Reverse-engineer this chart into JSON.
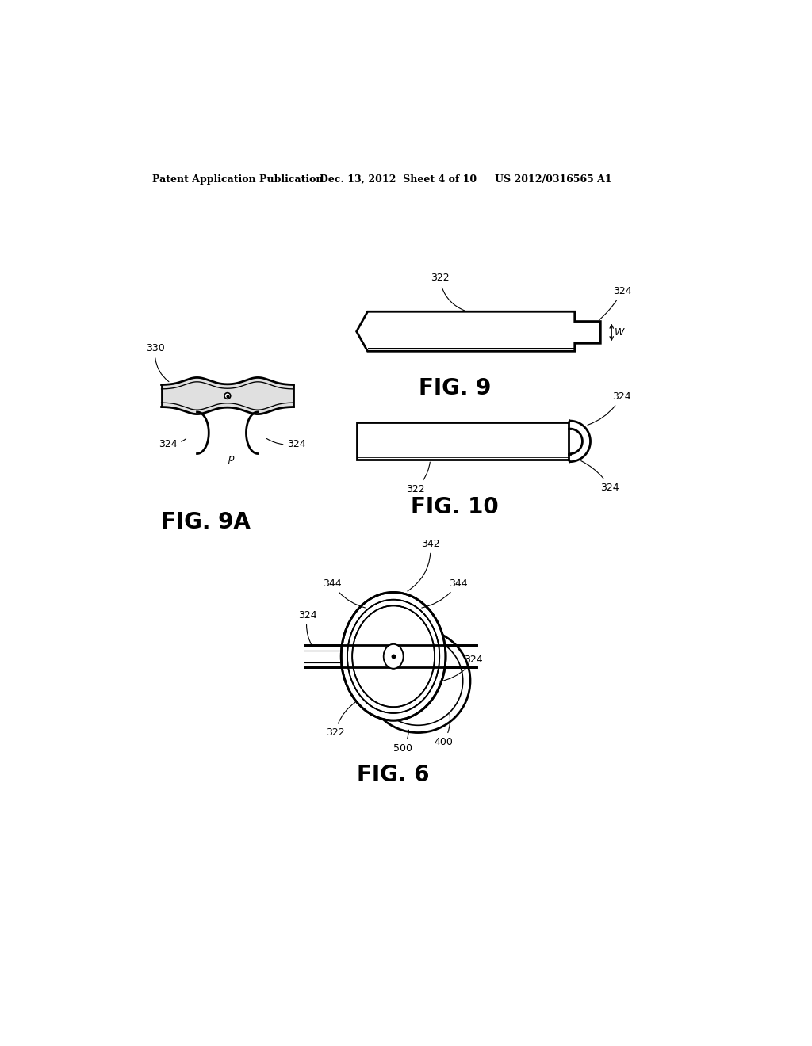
{
  "bg_color": "#ffffff",
  "header_left": "Patent Application Publication",
  "header_mid": "Dec. 13, 2012  Sheet 4 of 10",
  "header_right": "US 2012/0316565 A1",
  "fig9_label": "FIG. 9",
  "fig9a_label": "FIG. 9A",
  "fig10_label": "FIG. 10",
  "fig6_label": "FIG. 6",
  "line_color": "#000000",
  "lw_thin": 1.2,
  "lw_main": 2.0
}
